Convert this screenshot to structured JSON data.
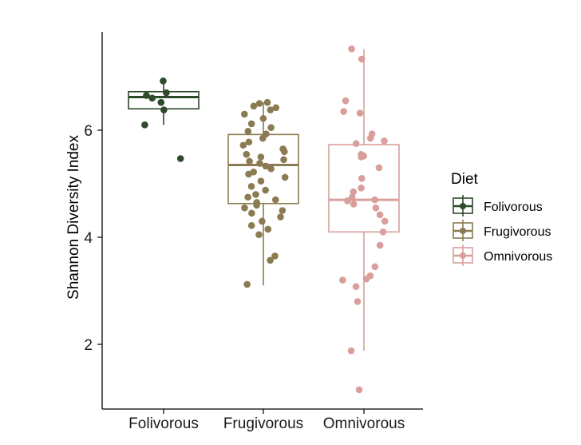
{
  "chart_data": {
    "type": "boxplot",
    "title": "",
    "xlabel": "",
    "ylabel": "Shannon Diversity Index",
    "ylim": [
      0.95,
      7.7
    ],
    "yticks": [
      2,
      4,
      6
    ],
    "categories": [
      "Folivorous",
      "Frugivorous",
      "Omnivorous"
    ],
    "legend": {
      "title": "Diet",
      "placement": "right"
    },
    "grid": false,
    "series": [
      {
        "name": "Folivorous",
        "color": "#2d4a2b",
        "box": {
          "min": 6.1,
          "q1": 6.4,
          "median": 6.62,
          "q3": 6.72,
          "max": 6.92
        },
        "points": [
          6.92,
          6.7,
          6.65,
          6.6,
          6.52,
          6.38,
          6.1,
          5.47
        ]
      },
      {
        "name": "Frugivorous",
        "color": "#8b7b52",
        "box": {
          "min": 3.1,
          "q1": 4.63,
          "median": 5.35,
          "q3": 5.92,
          "max": 6.52
        },
        "points": [
          6.52,
          6.5,
          6.45,
          6.42,
          6.38,
          6.3,
          6.22,
          6.12,
          6.05,
          5.98,
          5.93,
          5.85,
          5.78,
          5.72,
          5.65,
          5.6,
          5.55,
          5.5,
          5.45,
          5.42,
          5.38,
          5.33,
          5.28,
          5.22,
          5.18,
          5.12,
          5.05,
          4.95,
          4.88,
          4.8,
          4.75,
          4.7,
          4.65,
          4.6,
          4.55,
          4.5,
          4.45,
          4.38,
          4.3,
          4.22,
          4.15,
          4.05,
          3.65,
          3.57,
          3.12
        ]
      },
      {
        "name": "Omnivorous",
        "color": "#d99f9c",
        "box": {
          "min": 1.88,
          "q1": 4.1,
          "median": 4.7,
          "q3": 5.73,
          "max": 7.52
        },
        "points": [
          7.52,
          7.33,
          6.55,
          6.35,
          6.32,
          5.93,
          5.85,
          5.8,
          5.75,
          5.55,
          5.52,
          5.5,
          5.3,
          5.1,
          4.92,
          4.85,
          4.75,
          4.7,
          4.68,
          4.62,
          4.55,
          4.42,
          4.3,
          4.1,
          3.85,
          3.45,
          3.28,
          3.22,
          3.2,
          3.08,
          2.8,
          1.88,
          1.15
        ]
      }
    ]
  }
}
